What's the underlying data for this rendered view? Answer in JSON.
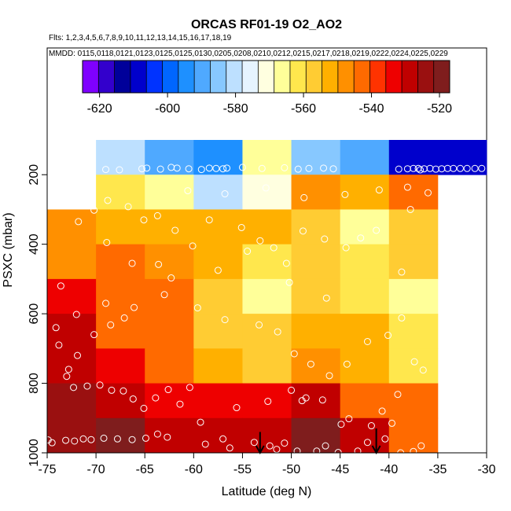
{
  "chart_data": {
    "type": "heatmap",
    "title": "ORCAS RF01-19 O2_AO2",
    "subtitle_flights": "Flts: 1,2,3,4,5,6,7,8,9,10,11,12,13,14,15,16,17,18,19",
    "subtitle_dates": "MMDD: 0115,0118,0121,0123,0125,0125,0130,0205,0208,0210,0212,0215,0217,0218,0219,0222,0224,0225,0229",
    "xlabel": "Latitude (deg N)",
    "ylabel": "PSXC (mbar)",
    "xlim": [
      -75,
      -30
    ],
    "ylim": [
      1000,
      50
    ],
    "x_ticks": [
      "-75",
      "-70",
      "-65",
      "-60",
      "-55",
      "-50",
      "-45",
      "-40",
      "-35",
      "-30"
    ],
    "x_tick_values": [
      -75,
      -70,
      -65,
      -60,
      -55,
      -50,
      -45,
      -40,
      -35,
      -30
    ],
    "y_ticks": [
      "200",
      "400",
      "600",
      "800",
      "1000"
    ],
    "y_tick_values": [
      200,
      400,
      600,
      800,
      1000
    ],
    "colorbar": {
      "min": -625,
      "max": -517,
      "ticks": [
        "-620",
        "-600",
        "-580",
        "-560",
        "-540",
        "-520"
      ],
      "tick_values": [
        -620,
        -600,
        -580,
        -560,
        -540,
        -520
      ],
      "colors": [
        "#7f00ff",
        "#3300cc",
        "#00009a",
        "#0000cc",
        "#0033ff",
        "#0066ff",
        "#1e90ff",
        "#4fa9ff",
        "#87c8ff",
        "#bde0ff",
        "#e6f4ff",
        "#ffffe0",
        "#ffff99",
        "#ffe74d",
        "#ffcc33",
        "#ffb000",
        "#ff9000",
        "#ff6a00",
        "#ff3300",
        "#ee0000",
        "#c00000",
        "#9a1010",
        "#7f1d1d"
      ]
    },
    "x_edges": [
      -75,
      -70,
      -65,
      -60,
      -55,
      -50,
      -45,
      -40,
      -35,
      -30
    ],
    "p_edges": [
      100,
      200,
      300,
      400,
      500,
      600,
      700,
      800,
      900,
      1000
    ],
    "cells": [
      [
        null,
        -582,
        -592,
        -595,
        -568,
        -585,
        -590,
        -610,
        -610
      ],
      [
        null,
        -560,
        -568,
        -580,
        -570,
        -548,
        -550,
        -545,
        null
      ],
      [
        -547,
        -550,
        -552,
        -553,
        -550,
        -555,
        -565,
        -555,
        null
      ],
      [
        -547,
        -545,
        -548,
        -550,
        -562,
        -558,
        -560,
        -555,
        null
      ],
      [
        -535,
        -543,
        -545,
        -555,
        -565,
        -558,
        -560,
        -568,
        null
      ],
      [
        -530,
        -543,
        -545,
        -555,
        -558,
        -552,
        -553,
        -560,
        null
      ],
      [
        -530,
        -535,
        -543,
        -550,
        -555,
        -548,
        -550,
        -562,
        null
      ],
      [
        -524,
        -528,
        -535,
        -535,
        -535,
        -530,
        -542,
        -543,
        null
      ],
      [
        -524,
        -520,
        -528,
        -530,
        -530,
        -518,
        -528,
        -543,
        null
      ]
    ],
    "observations": [
      [
        -71.6,
        182
      ],
      [
        -71.2,
        188
      ],
      [
        -70.8,
        180
      ],
      [
        -69.0,
        185
      ],
      [
        -67.6,
        186
      ],
      [
        -65.3,
        183
      ],
      [
        -64.8,
        181
      ],
      [
        -63.4,
        184
      ],
      [
        -62.3,
        179
      ],
      [
        -61.7,
        181
      ],
      [
        -60.5,
        183
      ],
      [
        -59.2,
        185
      ],
      [
        -58.4,
        181
      ],
      [
        -57.7,
        182
      ],
      [
        -57.0,
        183
      ],
      [
        -56.6,
        181
      ],
      [
        -55.0,
        179
      ],
      [
        -53.0,
        182
      ],
      [
        -50.7,
        180
      ],
      [
        -49.3,
        184
      ],
      [
        -48.2,
        182
      ],
      [
        -46.7,
        181
      ],
      [
        -45.7,
        183
      ],
      [
        -37.5,
        182
      ],
      [
        -37.0,
        182
      ],
      [
        -36.4,
        183
      ],
      [
        -35.8,
        182
      ],
      [
        -35.2,
        184
      ],
      [
        -34.6,
        183
      ],
      [
        -34.0,
        182
      ],
      [
        -33.4,
        182
      ],
      [
        -32.7,
        182
      ],
      [
        -32.0,
        182
      ],
      [
        -31.2,
        182
      ],
      [
        -30.5,
        182
      ],
      [
        -39.0,
        184
      ],
      [
        -38.1,
        183
      ],
      [
        -36.8,
        186
      ],
      [
        -65.1,
        330
      ],
      [
        -68.9,
        395
      ],
      [
        -63.6,
        458
      ],
      [
        -62.3,
        497
      ],
      [
        -57.5,
        475
      ],
      [
        -54.5,
        420
      ],
      [
        -50.2,
        510
      ],
      [
        -46.4,
        555
      ],
      [
        -38.7,
        480
      ],
      [
        -37.8,
        300
      ],
      [
        -66.3,
        455
      ],
      [
        -69.0,
        570
      ],
      [
        -70.2,
        660
      ],
      [
        -71.9,
        720
      ],
      [
        -72.8,
        760
      ],
      [
        -73.6,
        520
      ],
      [
        -74.1,
        640
      ],
      [
        -61.4,
        860
      ],
      [
        -59.3,
        912
      ],
      [
        -55.6,
        870
      ],
      [
        -52.4,
        852
      ],
      [
        -48.5,
        842
      ],
      [
        -44.1,
        902
      ],
      [
        -41.8,
        922
      ],
      [
        -39.7,
        915
      ],
      [
        -40.4,
        960
      ],
      [
        -42.2,
        970
      ],
      [
        -46.5,
        980
      ],
      [
        -49.4,
        995
      ],
      [
        -51.5,
        990
      ],
      [
        -56.3,
        986
      ],
      [
        -57.0,
        960
      ],
      [
        -58.8,
        975
      ],
      [
        -62.7,
        955
      ],
      [
        -63.7,
        946
      ],
      [
        -64.9,
        958
      ],
      [
        -66.3,
        962
      ],
      [
        -67.8,
        960
      ],
      [
        -69.2,
        958
      ],
      [
        -70.5,
        962
      ],
      [
        -71.3,
        960
      ],
      [
        -72.2,
        966
      ],
      [
        -73.1,
        964
      ],
      [
        -74.5,
        971
      ],
      [
        -74.9,
        963
      ],
      [
        -53.8,
        970
      ],
      [
        -52.2,
        980
      ],
      [
        -50.7,
        972
      ],
      [
        -47.4,
        995
      ],
      [
        -45.2,
        999
      ],
      [
        -43.2,
        995
      ],
      [
        -38.8,
        1000
      ],
      [
        -37.5,
        996
      ],
      [
        -36.7,
        980
      ],
      [
        -39.1,
        832
      ],
      [
        -40.7,
        880
      ],
      [
        -44.9,
        918
      ],
      [
        -46.8,
        848
      ],
      [
        -48.9,
        850
      ],
      [
        -50.0,
        820
      ],
      [
        -60.4,
        812
      ],
      [
        -62.6,
        818
      ],
      [
        -63.9,
        842
      ],
      [
        -65.1,
        872
      ],
      [
        -66.2,
        845
      ],
      [
        -67.2,
        822
      ],
      [
        -68.4,
        820
      ],
      [
        -69.6,
        805
      ],
      [
        -70.9,
        808
      ],
      [
        -72.3,
        812
      ],
      [
        -73.0,
        780
      ],
      [
        -73.8,
        690
      ],
      [
        -72.0,
        602
      ],
      [
        -68.5,
        632
      ],
      [
        -67.1,
        612
      ],
      [
        -66.1,
        582
      ],
      [
        -63.0,
        545
      ],
      [
        -59.6,
        583
      ],
      [
        -56.8,
        617
      ],
      [
        -53.3,
        632
      ],
      [
        -51.4,
        652
      ],
      [
        -49.7,
        715
      ],
      [
        -48.0,
        745
      ],
      [
        -46.1,
        778
      ],
      [
        -44.3,
        745
      ],
      [
        -42.2,
        680
      ],
      [
        -40.1,
        662
      ],
      [
        -38.7,
        612
      ],
      [
        -37.4,
        738
      ],
      [
        -36.5,
        762
      ],
      [
        -41.3,
        360
      ],
      [
        -42.9,
        382
      ],
      [
        -44.4,
        410
      ],
      [
        -46.6,
        385
      ],
      [
        -48.8,
        362
      ],
      [
        -50.5,
        455
      ],
      [
        -51.8,
        410
      ],
      [
        -53.2,
        390
      ],
      [
        -55.1,
        352
      ],
      [
        -58.4,
        330
      ],
      [
        -60.1,
        405
      ],
      [
        -61.9,
        360
      ],
      [
        -63.7,
        318
      ],
      [
        -66.7,
        292
      ],
      [
        -68.8,
        274
      ],
      [
        -70.2,
        302
      ],
      [
        -71.8,
        335
      ],
      [
        -60.6,
        246
      ],
      [
        -56.8,
        255
      ],
      [
        -52.6,
        238
      ],
      [
        -48.7,
        266
      ],
      [
        -44.5,
        257
      ],
      [
        -41.0,
        244
      ],
      [
        -38.1,
        236
      ],
      [
        -36.0,
        252
      ]
    ],
    "arrows": [
      {
        "x": -53.2,
        "p_top": 940,
        "p_bottom": 1000
      },
      {
        "x": -41.3,
        "p_top": 930,
        "p_bottom": 1000
      }
    ]
  }
}
